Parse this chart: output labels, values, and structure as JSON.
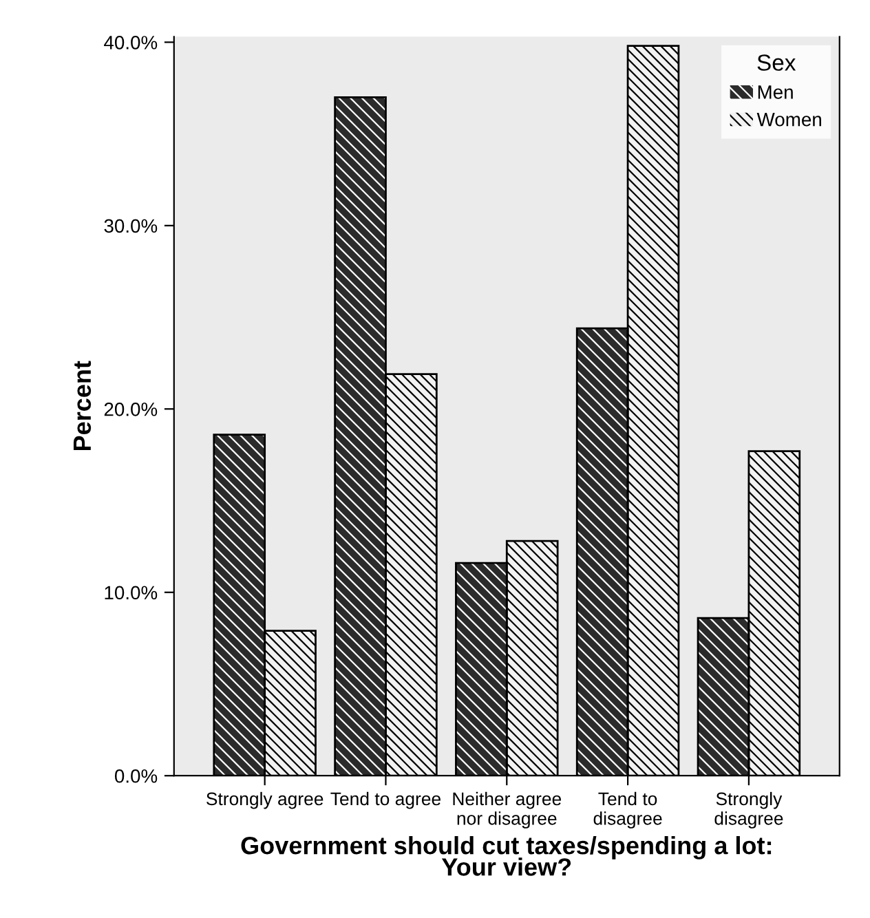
{
  "chart_data": {
    "type": "bar",
    "xlabel": "Government should cut taxes/spending a lot:\nYour view?",
    "ylabel": "Percent",
    "legend_title": "Sex",
    "categories": [
      "Strongly agree",
      "Tend to agree",
      "Neither agree\nnor disagree",
      "Tend to\ndisagree",
      "Strongly\ndisagree"
    ],
    "series": [
      {
        "name": "Men",
        "color": "#2b2b2b",
        "values": [
          18.6,
          37.0,
          11.6,
          24.4,
          8.6
        ]
      },
      {
        "name": "Women",
        "color": "#f2f2f2",
        "values": [
          7.9,
          21.9,
          12.8,
          39.8,
          17.7
        ]
      }
    ],
    "ylim": [
      0,
      40.3
    ],
    "yticks": [
      {
        "value": 0,
        "label": "0.0%"
      },
      {
        "value": 10,
        "label": "10.0%"
      },
      {
        "value": 20,
        "label": "20.0%"
      },
      {
        "value": 30,
        "label": "30.0%"
      },
      {
        "value": 40,
        "label": "40.0%"
      }
    ],
    "grid": false,
    "legend": "top right"
  }
}
